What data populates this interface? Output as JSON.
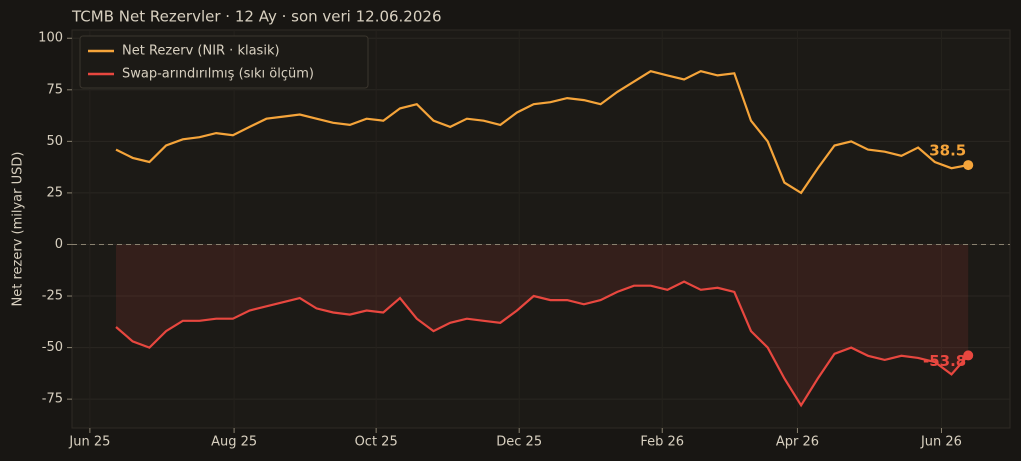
{
  "chart_data": {
    "type": "line",
    "title": "TCMB Net Rezervler · 12 Ay · son veri 12.06.2026",
    "ylabel": "Net rezerv (milyar USD)",
    "categories": [
      null,
      null,
      null,
      null,
      null,
      null,
      null,
      null,
      null,
      null,
      null,
      null,
      null,
      null,
      null,
      null,
      null,
      null,
      null,
      null,
      null,
      null,
      null,
      null,
      null,
      null,
      null,
      null,
      null,
      null,
      null,
      null,
      null,
      null,
      null,
      null,
      null,
      null,
      null,
      null,
      null,
      null,
      null,
      null,
      null,
      null,
      null,
      null,
      null,
      null,
      null,
      null
    ],
    "series": [
      {
        "name": "Net Rezerv (NIR · klasik)",
        "color": "#f5a43a",
        "values": [
          46,
          42,
          40,
          48,
          51,
          52,
          54,
          53,
          57,
          61,
          62,
          63,
          61,
          59,
          58,
          61,
          60,
          66,
          68,
          60,
          57,
          61,
          60,
          58,
          64,
          68,
          69,
          71,
          70,
          68,
          74,
          79,
          84,
          82,
          80,
          84,
          82,
          83,
          60,
          50,
          30,
          25,
          37,
          48,
          50,
          46,
          45,
          43,
          47,
          40,
          37,
          38.5
        ]
      },
      {
        "name": "Swap-arındırılmış (sıkı ölçüm)",
        "color": "#e8473f",
        "fill": true,
        "values": [
          -40,
          -47,
          -50,
          -42,
          -37,
          -37,
          -36,
          -36,
          -32,
          -30,
          -28,
          -26,
          -31,
          -33,
          -34,
          -32,
          -33,
          -26,
          -36,
          -42,
          -38,
          -36,
          -37,
          -38,
          -32,
          -25,
          -27,
          -27,
          -29,
          -27,
          -23,
          -20,
          -20,
          -22,
          -18,
          -22,
          -21,
          -23,
          -42,
          -50,
          -65,
          -78,
          -65,
          -53,
          -50,
          -54,
          -56,
          -54,
          -55,
          -57,
          -63,
          -53.8
        ]
      }
    ],
    "xlim": [
      -2.63,
      53.5
    ],
    "xticks": [
      {
        "value": -1.56,
        "label": "Jun 25"
      },
      {
        "value": 7.07,
        "label": "Aug 25"
      },
      {
        "value": 15.57,
        "label": "Oct 25"
      },
      {
        "value": 24.13,
        "label": "Dec 25"
      },
      {
        "value": 32.69,
        "label": "Feb 26"
      },
      {
        "value": 40.78,
        "label": "Apr 26"
      },
      {
        "value": 49.4,
        "label": "Jun 26"
      }
    ],
    "ylim": [
      -89,
      104
    ],
    "yticks": [
      100,
      75,
      50,
      25,
      0,
      -25,
      -50,
      -75
    ],
    "grid": true,
    "zero_line": true,
    "legend": "upper left"
  }
}
